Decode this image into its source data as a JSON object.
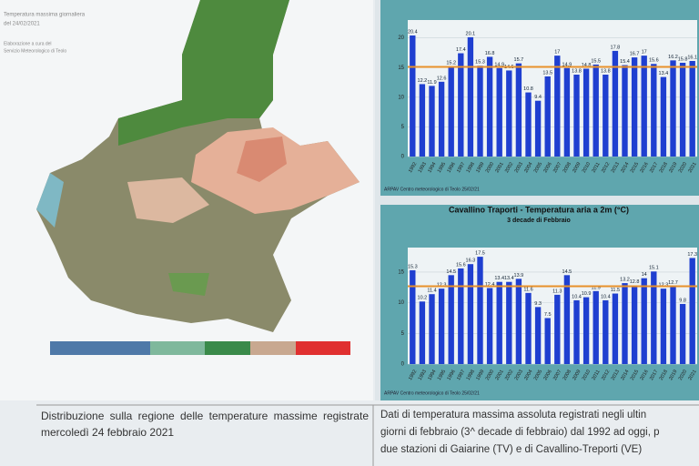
{
  "map": {
    "title": "Temperatura massima giornaliera",
    "date": "del 24/02/2021",
    "credit_1": "Elaborazione a cura del",
    "credit_2": "Servizio Meteorologico di Teolo"
  },
  "captions": {
    "left": "Distribuzione sulla regione delle temperature massime registrate mercoledì 24 febbraio 2021",
    "right_1": "Dati di temperatura massima assoluta registrati negli ultin",
    "right_2": "giorni di febbraio (3^ decade di febbraio) dal 1992 ad oggi, p",
    "right_3": "due stazioni di Gaiarine (TV) e di Cavallino-Treporti (VE)"
  },
  "chart_data": [
    {
      "type": "bar",
      "source": "ARPAV Centro meteorologico di Teolo 25/02/21",
      "categories": [
        "1992",
        "1993",
        "1994",
        "1995",
        "1996",
        "1997",
        "1998",
        "1999",
        "2000",
        "2001",
        "2002",
        "2003",
        "2004",
        "2005",
        "2006",
        "2007",
        "2008",
        "2009",
        "2010",
        "2011",
        "2012",
        "2013",
        "2014",
        "2015",
        "2016",
        "2017",
        "2018",
        "2019",
        "2020",
        "2021"
      ],
      "values": [
        20.4,
        12.2,
        11.9,
        12.6,
        15.2,
        17.4,
        20.1,
        15.3,
        16.8,
        14.9,
        14.5,
        15.7,
        10.8,
        9.4,
        13.5,
        17.0,
        14.9,
        13.8,
        14.8,
        15.5,
        13.8,
        17.8,
        15.4,
        16.7,
        17.0,
        15.6,
        13.4,
        16.2,
        15.8,
        16.1
      ],
      "mean": 15.1,
      "color": "#1f3fd0",
      "mean_color": "#e8912a",
      "ylim": [
        0,
        23
      ],
      "yticks": [
        0,
        5,
        10,
        15,
        20
      ]
    },
    {
      "type": "bar",
      "title": "Cavallino Traporti - Temperatura aria a 2m (°C)",
      "subtitle": "3 decade di Febbraio",
      "source": "ARPAV Centro meteorologico di Teolo 25/02/21",
      "categories": [
        "1992",
        "1993",
        "1994",
        "1995",
        "1996",
        "1997",
        "1998",
        "1999",
        "2000",
        "2001",
        "2002",
        "2003",
        "2004",
        "2005",
        "2006",
        "2007",
        "2008",
        "2009",
        "2010",
        "2011",
        "2012",
        "2013",
        "2014",
        "2015",
        "2016",
        "2017",
        "2018",
        "2019",
        "2020",
        "2021"
      ],
      "values": [
        15.3,
        10.2,
        11.4,
        12.3,
        14.5,
        15.6,
        16.3,
        17.5,
        12.4,
        13.4,
        13.4,
        13.9,
        11.6,
        9.3,
        7.5,
        11.3,
        14.5,
        10.4,
        10.9,
        11.9,
        10.4,
        11.5,
        13.2,
        12.8,
        14.0,
        15.1,
        12.3,
        12.7,
        9.8,
        17.3
      ],
      "mean": 12.7,
      "color": "#1f3fd0",
      "mean_color": "#e8912a",
      "ylim": [
        0,
        19
      ],
      "yticks": [
        0,
        5,
        10,
        15
      ]
    }
  ]
}
